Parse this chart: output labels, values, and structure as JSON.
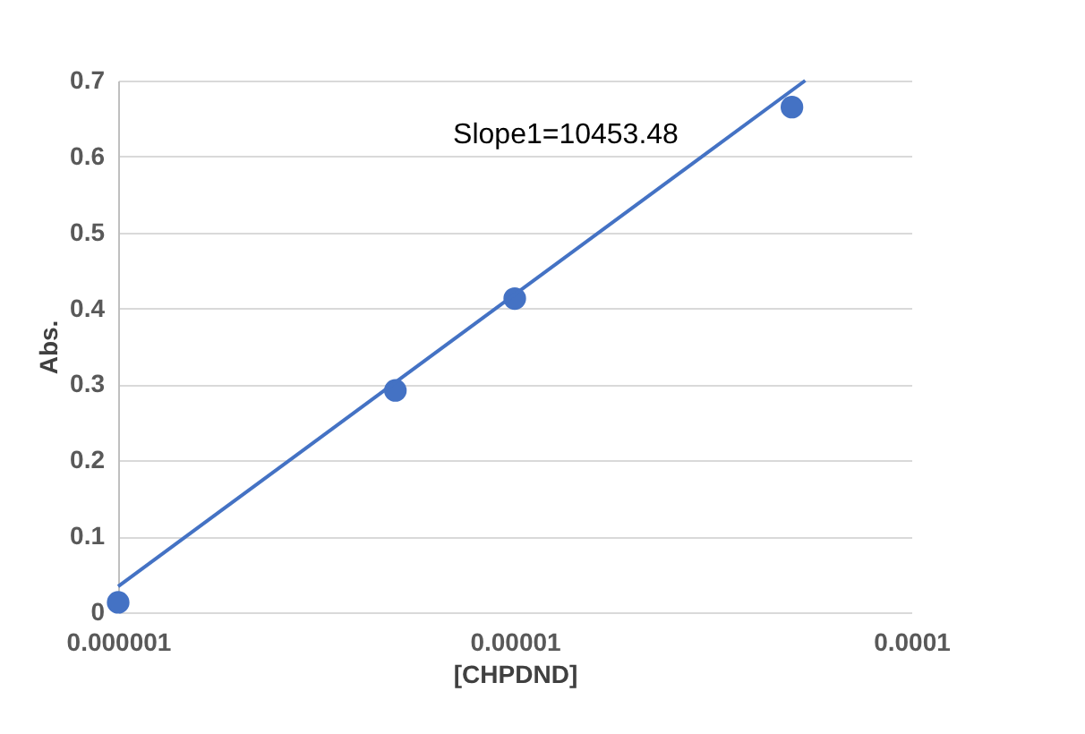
{
  "chart_data": {
    "type": "scatter",
    "xlabel": "[CHPDND]",
    "ylabel": "Abs.",
    "log": "x",
    "annotations": [
      "Slope1=10453.48"
    ],
    "xlim": [
      1e-06,
      0.0001
    ],
    "xticks": [
      {
        "value": 1e-06,
        "label": "0.000001"
      },
      {
        "value": 1e-05,
        "label": "0.00001"
      },
      {
        "value": 0.0001,
        "label": "0.0001"
      }
    ],
    "ylim": [
      0,
      0.7
    ],
    "yticks": [
      0,
      0.1,
      0.2,
      0.3,
      0.4,
      0.5,
      0.6,
      0.7
    ],
    "grid": "y",
    "marker": "circle",
    "series": [
      {
        "color": "#4472c4",
        "x": [
          1e-06,
          5e-06,
          1e-05,
          5e-05
        ],
        "values": [
          0.013,
          0.292,
          0.413,
          0.665
        ]
      },
      {
        "type": "line",
        "color": "#4472c4",
        "line_style": "solid",
        "marker": "none",
        "x": [
          1e-06,
          5.4e-05
        ],
        "values": [
          0.034,
          0.7
        ]
      }
    ]
  }
}
